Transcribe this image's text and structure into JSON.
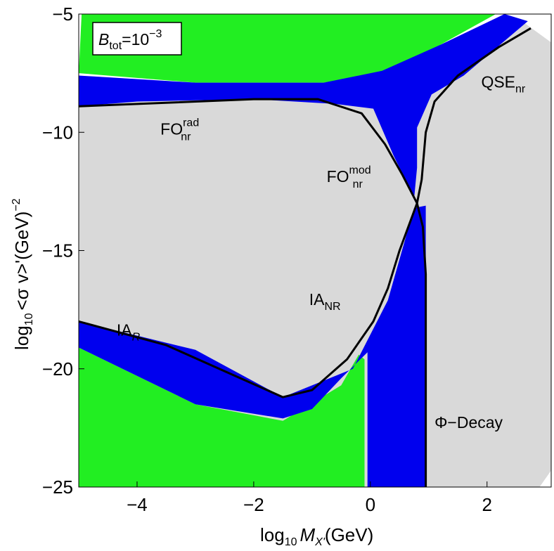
{
  "chart_data": {
    "type": "area",
    "xlim": [
      -5,
      3.1
    ],
    "ylim": [
      -25,
      -5
    ],
    "x_ticks": [
      -4,
      -2,
      0,
      2
    ],
    "x_tick_labels": [
      "−4",
      "−2",
      "0",
      "2"
    ],
    "y_ticks": [
      -25,
      -20,
      -15,
      -10,
      -5
    ],
    "y_tick_labels": [
      "−25",
      "−20",
      "−15",
      "−10",
      "−5"
    ],
    "xlabel": {
      "pre": "log",
      "sub": "10",
      "var": "M",
      "varsub": "X'",
      "post": "(GeV)"
    },
    "ylabel": {
      "pre": "log",
      "sub": "10",
      "mid": "<σ v>'(GeV)",
      "sup": "−2"
    },
    "inset": {
      "var": "B",
      "sub": "tot",
      "mid": "=10",
      "sup": "−3"
    },
    "colors": {
      "green": "#22ee22",
      "blue": "#0000ee",
      "gray": "#d9d9d9",
      "line": "#000000"
    },
    "regions": {
      "gray_full": [
        [
          -5,
          -7.6
        ],
        [
          -3,
          -7.9
        ],
        [
          -1,
          -7.9
        ],
        [
          0,
          -7.6
        ],
        [
          1.5,
          -6.5
        ],
        [
          2.6,
          -5.3
        ],
        [
          3.1,
          -6.2
        ],
        [
          3.1,
          -24.3
        ],
        [
          2.9,
          -25
        ],
        [
          -5,
          -25
        ]
      ],
      "green_top": [
        [
          -4.95,
          -5
        ],
        [
          2.15,
          -5
        ],
        [
          1.2,
          -6.3
        ],
        [
          0.5,
          -7.4
        ],
        [
          -0.8,
          -7.9
        ],
        [
          -3,
          -7.9
        ],
        [
          -5,
          -7.5
        ]
      ],
      "blue_upper": [
        [
          -5,
          -7.6
        ],
        [
          -3,
          -7.9
        ],
        [
          -0.8,
          -7.9
        ],
        [
          0.2,
          -7.4
        ],
        [
          1.2,
          -6.3
        ],
        [
          2.3,
          -5
        ],
        [
          2.7,
          -5.3
        ],
        [
          1.6,
          -7.6
        ],
        [
          1.05,
          -8.4
        ],
        [
          0.8,
          -9.8
        ],
        [
          0.8,
          -11.5
        ],
        [
          0.75,
          -12.8
        ],
        [
          0.6,
          -12
        ],
        [
          0.4,
          -11
        ],
        [
          0.05,
          -9
        ],
        [
          -0.6,
          -8.8
        ],
        [
          -2,
          -8.6
        ],
        [
          -4,
          -8.7
        ],
        [
          -5,
          -8.9
        ]
      ],
      "blue_lower": [
        [
          -5,
          -18
        ],
        [
          -3,
          -19.2
        ],
        [
          -1.5,
          -21.2
        ],
        [
          -0.3,
          -20
        ],
        [
          0.3,
          -17.1
        ],
        [
          0.75,
          -13.2
        ],
        [
          0.95,
          -13.1
        ],
        [
          0.95,
          -25
        ],
        [
          0.6,
          -25
        ],
        [
          -0.05,
          -25
        ],
        [
          -0.05,
          -19.3
        ],
        [
          -0.5,
          -20.4
        ],
        [
          -1,
          -21.7
        ],
        [
          -1.5,
          -22.1
        ],
        [
          -3,
          -21.5
        ],
        [
          -5,
          -19.1
        ]
      ],
      "green_bottom": [
        [
          -5,
          -19.1
        ],
        [
          -3,
          -21.5
        ],
        [
          -1.5,
          -22.2
        ],
        [
          -0.5,
          -20.7
        ],
        [
          -0.2,
          -19.4
        ],
        [
          -0.1,
          -19.6
        ],
        [
          -0.1,
          -25
        ],
        [
          -5,
          -25
        ]
      ]
    },
    "curves": [
      [
        [
          -5,
          -8.9
        ],
        [
          -4,
          -8.8
        ],
        [
          -2,
          -8.6
        ],
        [
          -0.9,
          -8.6
        ],
        [
          -0.15,
          -9.2
        ],
        [
          0.25,
          -10.5
        ],
        [
          0.55,
          -11.8
        ],
        [
          0.8,
          -13
        ]
      ],
      [
        [
          -5,
          -18
        ],
        [
          -3.5,
          -19
        ],
        [
          -2.5,
          -20.1
        ],
        [
          -1.5,
          -21.2
        ],
        [
          -1,
          -20.9
        ],
        [
          -0.4,
          -19.6
        ],
        [
          0.05,
          -18
        ],
        [
          0.3,
          -16.6
        ],
        [
          0.5,
          -15
        ],
        [
          0.8,
          -13
        ]
      ],
      [
        [
          0.8,
          -13
        ],
        [
          0.88,
          -12
        ],
        [
          0.95,
          -10
        ],
        [
          1.1,
          -8.7
        ],
        [
          1.5,
          -7.6
        ],
        [
          2.2,
          -6.4
        ],
        [
          2.75,
          -5.6
        ]
      ],
      [
        [
          0.8,
          -13
        ],
        [
          0.9,
          -14
        ],
        [
          0.95,
          -16
        ],
        [
          0.95,
          -20
        ],
        [
          0.95,
          -25
        ]
      ]
    ],
    "annotations": [
      {
        "name": "fo-rad",
        "base": "FO",
        "sub": "nr",
        "sup": "rad",
        "x": -3.6,
        "y": -10.1
      },
      {
        "name": "fo-mod",
        "base": "FO",
        "sub": "nr",
        "sup": "mod",
        "x": -0.75,
        "y": -12.1
      },
      {
        "name": "qse",
        "base": "QSE",
        "sub": "nr",
        "sup": "",
        "x": 1.9,
        "y": -8.1
      },
      {
        "name": "ia-nr",
        "base": "IA",
        "sub": "NR",
        "sup": "",
        "x": -1.05,
        "y": -17.3
      },
      {
        "name": "ia-r",
        "base": "IA",
        "sub": "R",
        "sup": "",
        "x": -4.35,
        "y": -18.6
      },
      {
        "name": "phi-decay",
        "base": "Φ−Decay",
        "sub": "",
        "sup": "",
        "x": 1.1,
        "y": -22.5
      }
    ]
  }
}
